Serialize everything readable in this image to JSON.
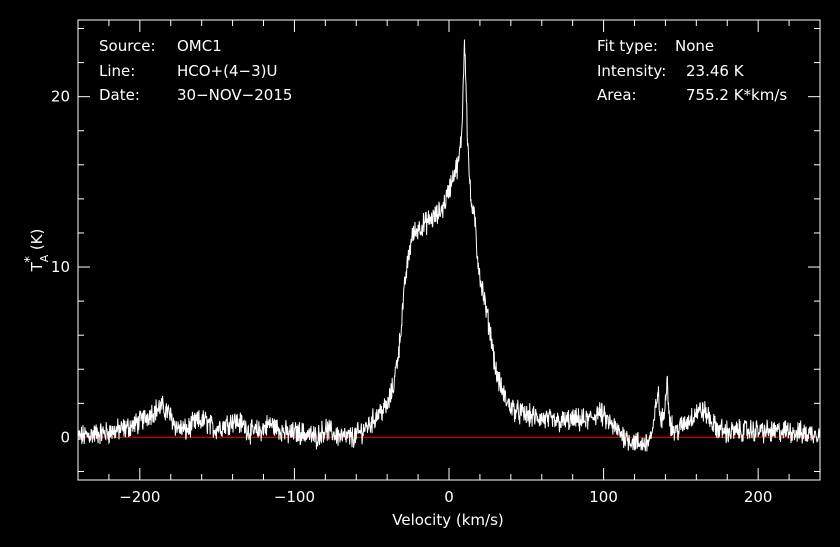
{
  "info_left": [
    {
      "label": "Source:",
      "value": "OMC1"
    },
    {
      "label": "Line:",
      "value": "HCO+(4−3)U"
    },
    {
      "label": "Date:",
      "value": "30−NOV−2015"
    }
  ],
  "info_right": [
    {
      "label": "Fit type:",
      "value": "None"
    },
    {
      "label": "Intensity:",
      "value": "23.46 K"
    },
    {
      "label": "Area:",
      "value": "755.2 K*km/s"
    }
  ],
  "colors": {
    "background": "#000000",
    "axes": "#ffffff",
    "spectrum": "#ffffff",
    "baseline": "#cc0000"
  },
  "chart_data": {
    "type": "line",
    "title": "",
    "xlabel": "Velocity (km/s)",
    "ylabel_main": "T",
    "ylabel_sup": "*",
    "ylabel_sub": "A",
    "ylabel_unit": "(K)",
    "xlim": [
      -240,
      240
    ],
    "ylim": [
      -2.5,
      24.5
    ],
    "x_ticks": [
      -200,
      -100,
      0,
      100,
      200
    ],
    "x_tick_labels": [
      "−200",
      "−100",
      "0",
      "100",
      "200"
    ],
    "y_ticks": [
      0,
      10,
      20
    ],
    "y_tick_labels": [
      "0",
      "10",
      "20"
    ],
    "baseline": 0,
    "grid": false,
    "series": [
      {
        "x": [
          -240,
          -230,
          -220,
          -210,
          -200,
          -192,
          -186,
          -182,
          -176,
          -170,
          -164,
          -158,
          -152,
          -146,
          -140,
          -134,
          -128,
          -122,
          -116,
          -110,
          -104,
          -98,
          -92,
          -86,
          -80,
          -74,
          -68,
          -62,
          -56,
          -50,
          -45,
          -40,
          -36,
          -32,
          -28,
          -24,
          -20,
          -16,
          -12,
          -8,
          -4,
          0,
          3,
          6,
          8,
          9,
          10,
          11,
          12,
          14,
          16,
          17,
          18,
          20,
          22,
          24,
          26,
          28,
          30,
          34,
          38,
          44,
          50,
          60,
          70,
          80,
          90,
          97,
          102,
          110,
          118,
          124,
          128,
          132,
          135,
          137,
          139,
          141,
          143,
          146,
          150,
          155,
          160,
          164,
          168,
          172,
          180,
          190,
          200,
          210,
          220,
          230,
          240
        ],
        "y": [
          0.0,
          0.2,
          0.3,
          0.5,
          0.9,
          1.5,
          1.8,
          1.5,
          0.6,
          0.4,
          0.9,
          1.0,
          0.5,
          0.7,
          1.0,
          0.8,
          0.3,
          0.4,
          0.8,
          0.5,
          0.2,
          0.3,
          0.2,
          0.0,
          0.5,
          0.2,
          0.0,
          0.0,
          0.4,
          0.9,
          1.5,
          1.8,
          3.0,
          5.5,
          9.5,
          11.8,
          12.3,
          12.5,
          12.8,
          13.0,
          13.5,
          14.5,
          15.5,
          16.0,
          17.5,
          20.0,
          23.46,
          21.0,
          17.5,
          14.0,
          13.0,
          12.5,
          11.0,
          9.5,
          8.5,
          7.5,
          6.5,
          5.5,
          4.0,
          2.8,
          2.0,
          1.5,
          1.3,
          1.1,
          0.9,
          1.0,
          1.0,
          1.5,
          1.0,
          0.3,
          -0.2,
          -0.4,
          -0.3,
          0.3,
          2.8,
          0.9,
          1.2,
          3.5,
          0.9,
          0.3,
          0.6,
          1.0,
          1.5,
          1.6,
          1.2,
          0.6,
          0.3,
          0.4,
          0.4,
          0.3,
          0.4,
          0.2,
          0.3
        ]
      }
    ]
  }
}
